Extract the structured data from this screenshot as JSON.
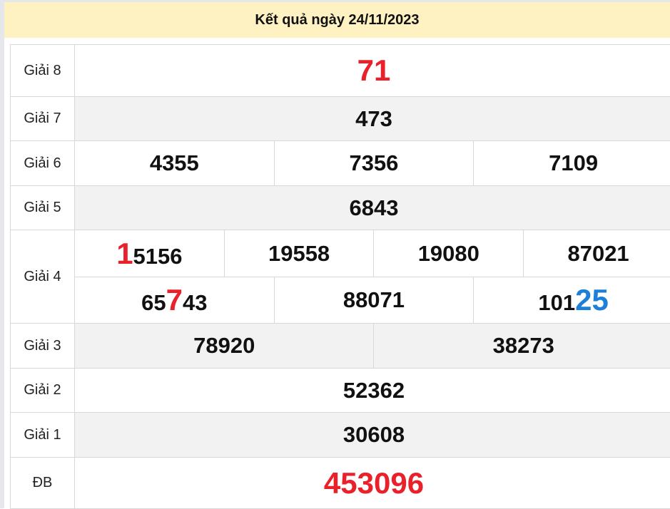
{
  "header": {
    "title": "Kết quả ngày 24/11/2023"
  },
  "colors": {
    "red": "#e8212a",
    "blue": "#1e7fd8",
    "header_bg": "#fff2c2",
    "alt_row": "#f2f2f2"
  },
  "prizes": {
    "g8": {
      "label": "Giải 8",
      "numbers": [
        "71"
      ]
    },
    "g7": {
      "label": "Giải 7",
      "numbers": [
        "473"
      ]
    },
    "g6": {
      "label": "Giải 6",
      "numbers": [
        "4355",
        "7356",
        "7109"
      ]
    },
    "g5": {
      "label": "Giải 5",
      "numbers": [
        "6843"
      ]
    },
    "g4": {
      "label": "Giải 4",
      "numbers": [
        {
          "parts": [
            {
              "text": "1",
              "color": "red"
            },
            {
              "text": "5156"
            }
          ]
        },
        {
          "parts": [
            {
              "text": "19558"
            }
          ]
        },
        {
          "parts": [
            {
              "text": "19080"
            }
          ]
        },
        {
          "parts": [
            {
              "text": "87021"
            }
          ]
        },
        {
          "parts": [
            {
              "text": "65"
            },
            {
              "text": "7",
              "color": "red"
            },
            {
              "text": "43"
            }
          ]
        },
        {
          "parts": [
            {
              "text": "88071"
            }
          ]
        },
        {
          "parts": [
            {
              "text": "101"
            },
            {
              "text": "25",
              "color": "blue"
            }
          ]
        }
      ]
    },
    "g3": {
      "label": "Giải 3",
      "numbers": [
        "78920",
        "38273"
      ]
    },
    "g2": {
      "label": "Giải 2",
      "numbers": [
        "52362"
      ]
    },
    "g1": {
      "label": "Giải 1",
      "numbers": [
        "30608"
      ]
    },
    "db": {
      "label": "ĐB",
      "numbers": [
        "453096"
      ]
    }
  }
}
